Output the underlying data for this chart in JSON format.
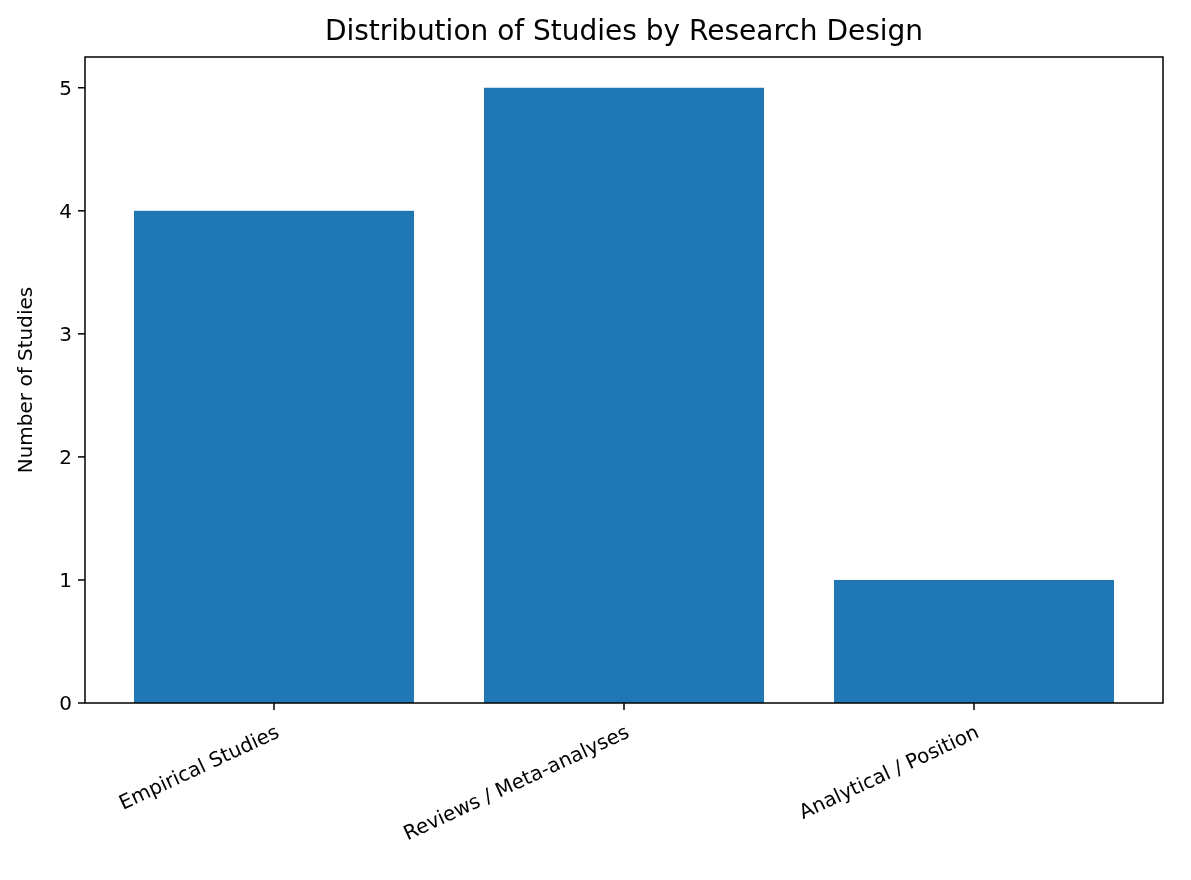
{
  "chart_data": {
    "type": "bar",
    "title": "Distribution of Studies by Research Design",
    "ylabel": "Number of Studies",
    "categories": [
      "Empirical Studies",
      "Reviews / Meta-analyses",
      "Analytical / Position"
    ],
    "values": [
      4,
      5,
      1
    ],
    "color": "#1f77b4",
    "ylim": [
      0,
      5.25
    ],
    "yticks": [
      0,
      1,
      2,
      3,
      4,
      5
    ],
    "grid": false
  }
}
